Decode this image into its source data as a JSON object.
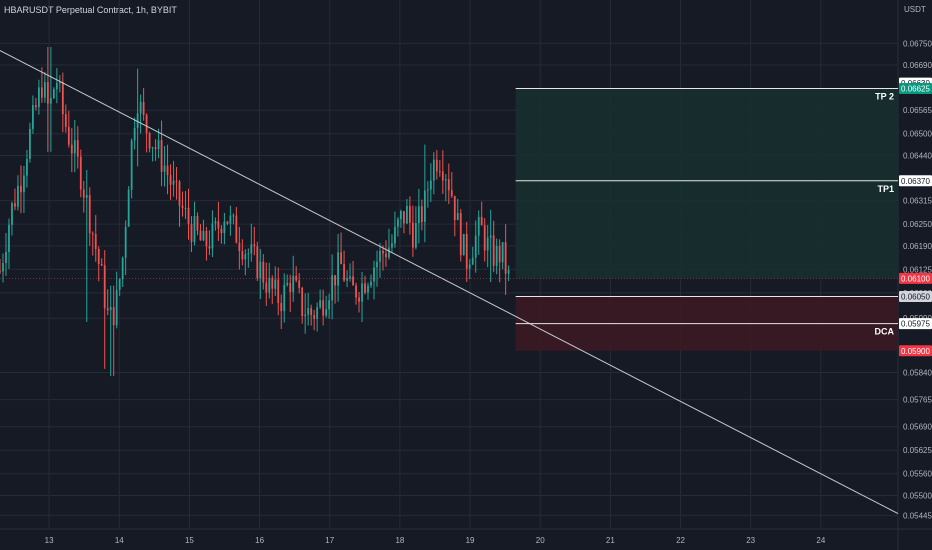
{
  "header": {
    "title": "HBARUSDT Perpetual Contract, 1h, BYBIT",
    "axis_unit": "USDT"
  },
  "colors": {
    "background": "#161a25",
    "grid": "#262b38",
    "bull": "#26a69a",
    "bear": "#ef5350",
    "trendline": "#c8cad0",
    "profit_zone": "#17302f",
    "loss_zone": "#3a1a24",
    "level_line": "#e6e6e6"
  },
  "chart_data": {
    "type": "candlestick",
    "ylim": [
      0.0541,
      0.0682
    ],
    "y_ticks": [
      "0.06750",
      "0.06690",
      "0.06565",
      "0.06500",
      "0.06440",
      "0.06315",
      "0.06250",
      "0.06190",
      "0.06125",
      "0.06060",
      "0.05990",
      "0.05840",
      "0.05765",
      "0.05690",
      "0.05625",
      "0.05560",
      "0.05500",
      "0.05445"
    ],
    "x_ticks": [
      {
        "label": "13",
        "t": 13
      },
      {
        "label": "14",
        "t": 14
      },
      {
        "label": "15",
        "t": 15
      },
      {
        "label": "16",
        "t": 16
      },
      {
        "label": "17",
        "t": 17
      },
      {
        "label": "18",
        "t": 18
      },
      {
        "label": "19",
        "t": 19
      },
      {
        "label": "20",
        "t": 20
      },
      {
        "label": "21",
        "t": 21
      },
      {
        "label": "22",
        "t": 22
      },
      {
        "label": "23",
        "t": 23
      },
      {
        "label": "24",
        "t": 24
      }
    ],
    "xlim": [
      12.3,
      25.1
    ],
    "price_path": [
      [
        12.3,
        0.0612
      ],
      [
        12.45,
        0.0628
      ],
      [
        12.6,
        0.0638
      ],
      [
        12.75,
        0.0652
      ],
      [
        12.9,
        0.0664
      ],
      [
        13.0,
        0.0656
      ],
      [
        13.1,
        0.0666
      ],
      [
        13.2,
        0.0655
      ],
      [
        13.3,
        0.0648
      ],
      [
        13.45,
        0.0639
      ],
      [
        13.6,
        0.0625
      ],
      [
        13.75,
        0.061
      ],
      [
        13.85,
        0.0598
      ],
      [
        13.95,
        0.0602
      ],
      [
        14.05,
        0.0616
      ],
      [
        14.15,
        0.0642
      ],
      [
        14.25,
        0.0661
      ],
      [
        14.35,
        0.0653
      ],
      [
        14.5,
        0.0647
      ],
      [
        14.65,
        0.0641
      ],
      [
        14.8,
        0.0633
      ],
      [
        15.0,
        0.0625
      ],
      [
        15.2,
        0.0619
      ],
      [
        15.35,
        0.0622
      ],
      [
        15.5,
        0.0628
      ],
      [
        15.65,
        0.0623
      ],
      [
        15.8,
        0.0618
      ],
      [
        16.0,
        0.0613
      ],
      [
        16.15,
        0.0607
      ],
      [
        16.3,
        0.0604
      ],
      [
        16.45,
        0.061
      ],
      [
        16.6,
        0.0602
      ],
      [
        16.75,
        0.06
      ],
      [
        16.85,
        0.0602
      ],
      [
        17.0,
        0.0608
      ],
      [
        17.15,
        0.0614
      ],
      [
        17.3,
        0.0606
      ],
      [
        17.45,
        0.0608
      ],
      [
        17.6,
        0.0613
      ],
      [
        17.75,
        0.0617
      ],
      [
        17.9,
        0.062
      ],
      [
        18.0,
        0.0626
      ],
      [
        18.1,
        0.0628
      ],
      [
        18.2,
        0.0622
      ],
      [
        18.35,
        0.063
      ],
      [
        18.45,
        0.0641
      ],
      [
        18.55,
        0.0644
      ],
      [
        18.65,
        0.064
      ],
      [
        18.75,
        0.0633
      ],
      [
        18.85,
        0.0622
      ],
      [
        18.95,
        0.0615
      ],
      [
        19.05,
        0.062
      ],
      [
        19.15,
        0.0624
      ],
      [
        19.25,
        0.0619
      ],
      [
        19.35,
        0.0616
      ],
      [
        19.45,
        0.0617
      ],
      [
        19.55,
        0.061
      ]
    ],
    "wicks": [
      {
        "t": 13.0,
        "high": 0.0674,
        "low": 0.0645
      },
      {
        "t": 13.55,
        "high": 0.064,
        "low": 0.0598
      },
      {
        "t": 13.8,
        "high": 0.0616,
        "low": 0.0585
      },
      {
        "t": 13.9,
        "high": 0.0608,
        "low": 0.0583
      },
      {
        "t": 14.25,
        "high": 0.0668,
        "low": 0.0641
      },
      {
        "t": 16.7,
        "high": 0.0606,
        "low": 0.0597
      },
      {
        "t": 18.35,
        "high": 0.0647,
        "low": 0.062
      },
      {
        "t": 19.3,
        "high": 0.0629,
        "low": 0.0609
      }
    ],
    "trendline": {
      "from": [
        12.3,
        0.0673
      ],
      "to": [
        25.1,
        0.0545
      ]
    },
    "zones": {
      "start_t": 19.65,
      "profit": {
        "top": 0.06625,
        "bottom": 0.061
      },
      "loss": {
        "top": 0.0605,
        "bottom": 0.059
      }
    },
    "levels": [
      {
        "label": "TP 2",
        "price": 0.06625
      },
      {
        "label": "TP1",
        "price": 0.0637
      },
      {
        "label": "DCA",
        "price": 0.05975
      },
      {
        "label": "",
        "price": 0.0605
      }
    ],
    "price_tags": [
      {
        "text": "0.06630",
        "price": 0.0664,
        "bg": "#ffffff",
        "fg": "#131722"
      },
      {
        "text": "0.06625",
        "price": 0.06625,
        "bg": "#089981",
        "fg": "#ffffff"
      },
      {
        "text": "0.06370",
        "price": 0.0637,
        "bg": "#ffffff",
        "fg": "#131722"
      },
      {
        "text": "0.06100",
        "price": 0.061,
        "bg": "#f23645",
        "fg": "#ffffff"
      },
      {
        "text": "0.06050",
        "price": 0.0605,
        "bg": "#d1d4dc",
        "fg": "#131722"
      },
      {
        "text": "0.05975",
        "price": 0.05975,
        "bg": "#ffffff",
        "fg": "#131722"
      },
      {
        "text": "0.05900",
        "price": 0.059,
        "bg": "#f23645",
        "fg": "#ffffff"
      }
    ],
    "current_price": 0.061
  }
}
